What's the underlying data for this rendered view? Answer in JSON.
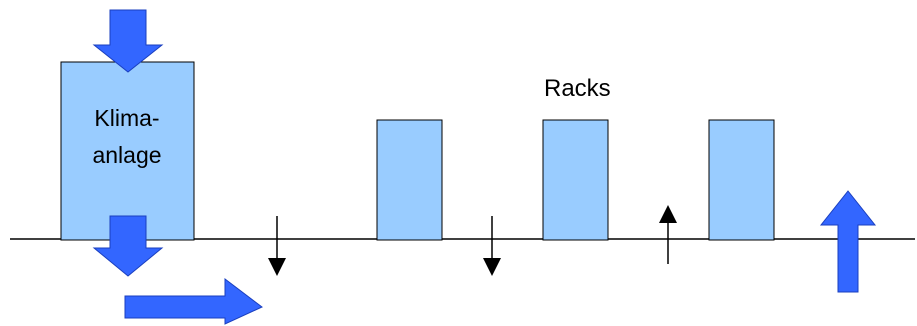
{
  "labels": {
    "klima_line1": "Klima-",
    "klima_line2": "anlage",
    "racks": "Racks"
  },
  "colors": {
    "box_fill": "#99ccff",
    "box_stroke": "#000000",
    "big_arrow_fill": "#3366ff",
    "big_arrow_stroke": "#1a3fbf",
    "line": "#000000",
    "background": "#ffffff"
  },
  "icons": {
    "big_arrow": "block-arrow",
    "small_arrow": "line-arrow"
  }
}
